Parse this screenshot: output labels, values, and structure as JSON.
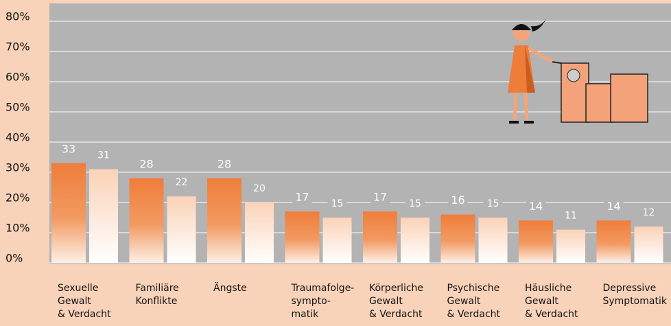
{
  "chart_data": {
    "type": "bar",
    "categories": [
      [
        "Sexuelle",
        "Gewalt",
        "& Verdacht"
      ],
      [
        "Familiäre",
        "Konflikte"
      ],
      [
        "Ängste"
      ],
      [
        "Traumafolge-",
        "sympto-",
        "matik"
      ],
      [
        "Körperliche",
        "Gewalt",
        "& Verdacht"
      ],
      [
        "Psychische",
        "Gewalt",
        "& Verdacht"
      ],
      [
        "Häusliche",
        "Gewalt",
        "& Verdacht"
      ],
      [
        "Depressive",
        "Symptomatik"
      ]
    ],
    "series": [
      {
        "color": "#ef7d3a",
        "values": [
          33,
          28,
          28,
          17,
          17,
          16,
          14,
          14
        ]
      },
      {
        "color": "#fbd7c0",
        "values": [
          31,
          22,
          20,
          15,
          15,
          15,
          11,
          12
        ]
      }
    ],
    "ylim": [
      0,
      80
    ],
    "yticks": [
      {
        "value": 0,
        "label": "0%"
      },
      {
        "value": 10,
        "label": "10%"
      },
      {
        "value": 20,
        "label": "20%"
      },
      {
        "value": 30,
        "label": "30%"
      },
      {
        "value": 40,
        "label": "40%"
      },
      {
        "value": 50,
        "label": "50%"
      },
      {
        "value": 60,
        "label": "60%"
      },
      {
        "value": 70,
        "label": "70%"
      },
      {
        "value": 80,
        "label": "80%"
      }
    ],
    "grid": true
  }
}
